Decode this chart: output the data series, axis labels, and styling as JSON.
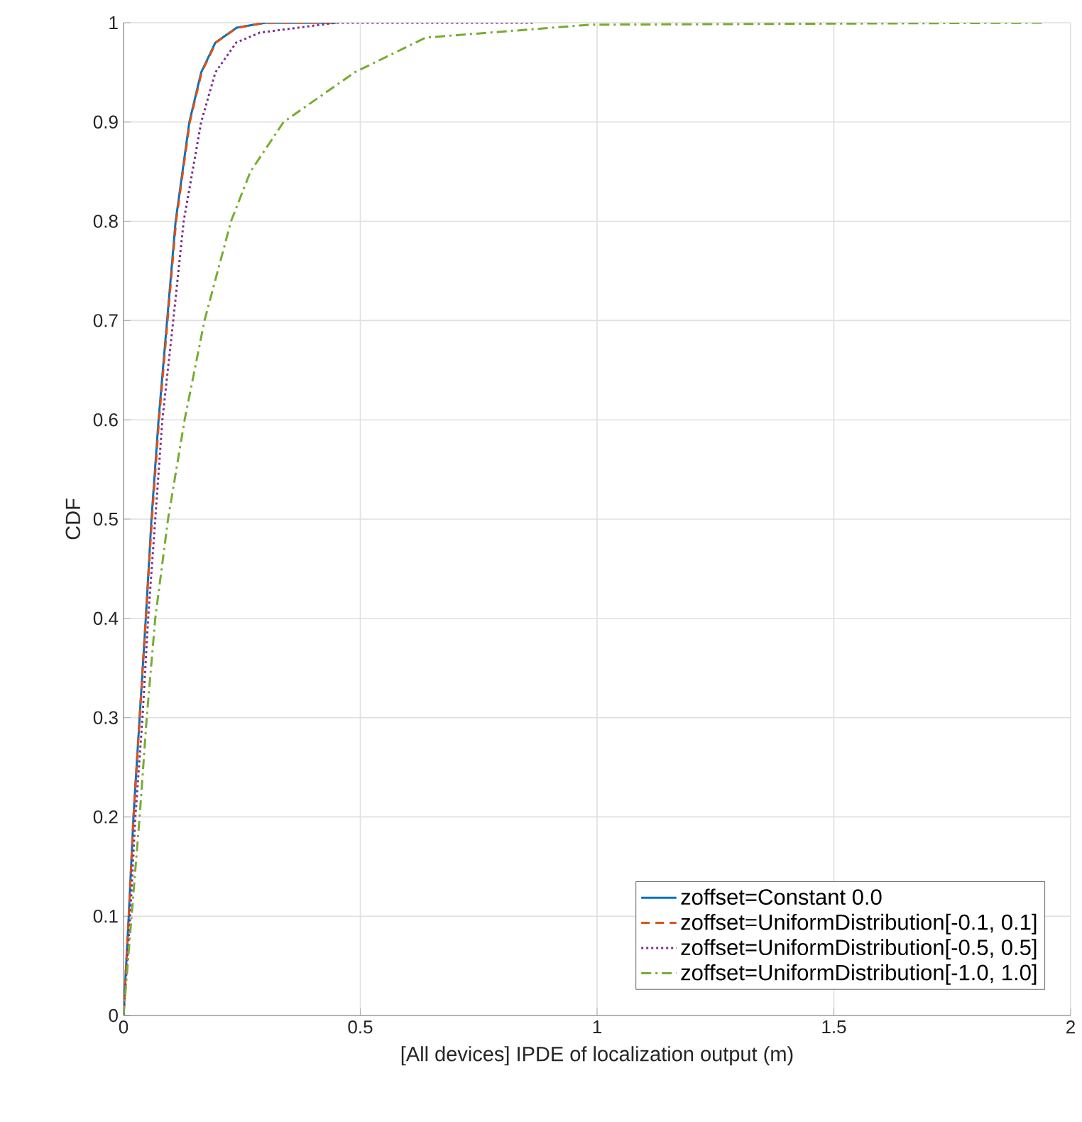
{
  "chart_data": {
    "type": "line",
    "xlabel": "[All devices] IPDE of localization output (m)",
    "ylabel": "CDF",
    "xlim": [
      0,
      2
    ],
    "ylim": [
      0,
      1
    ],
    "xticks": [
      0,
      0.5,
      1,
      1.5,
      2
    ],
    "yticks": [
      0,
      0.1,
      0.2,
      0.3,
      0.4,
      0.5,
      0.6,
      0.7,
      0.8,
      0.9,
      1
    ],
    "grid": true,
    "legend": "bottom right",
    "marker": "none",
    "series": [
      {
        "name": "zoffset=Constant 0.0",
        "color": "#0072bd",
        "line_style": "solid",
        "x": [
          0,
          0.011,
          0.021,
          0.034,
          0.047,
          0.059,
          0.074,
          0.092,
          0.11,
          0.139,
          0.164,
          0.194,
          0.239,
          0.3,
          0.449
        ],
        "values": [
          0,
          0.1,
          0.2,
          0.3,
          0.4,
          0.5,
          0.6,
          0.7,
          0.8,
          0.9,
          0.95,
          0.98,
          0.995,
          1,
          1
        ]
      },
      {
        "name": "zoffset=UniformDistribution[-0.1, 0.1]",
        "color": "#d95319",
        "line_style": "dashed",
        "x": [
          0,
          0.011,
          0.021,
          0.034,
          0.047,
          0.06,
          0.075,
          0.093,
          0.111,
          0.14,
          0.165,
          0.195,
          0.24,
          0.3,
          0.452
        ],
        "values": [
          0,
          0.1,
          0.2,
          0.3,
          0.4,
          0.5,
          0.6,
          0.7,
          0.8,
          0.9,
          0.95,
          0.98,
          0.995,
          1,
          1
        ]
      },
      {
        "name": "zoffset=UniformDistribution[-0.5, 0.5]",
        "color": "#7e2f8e",
        "line_style": "dotted",
        "x": [
          0,
          0.014,
          0.025,
          0.04,
          0.052,
          0.067,
          0.082,
          0.105,
          0.127,
          0.164,
          0.194,
          0.238,
          0.288,
          0.45,
          0.867
        ],
        "values": [
          0,
          0.1,
          0.2,
          0.3,
          0.4,
          0.5,
          0.6,
          0.7,
          0.8,
          0.9,
          0.95,
          0.98,
          0.99,
          1,
          1
        ]
      },
      {
        "name": "zoffset=UniformDistribution[-1.0, 1.0]",
        "color": "#77ac30",
        "line_style": "dashdot",
        "x": [
          0,
          0.017,
          0.034,
          0.049,
          0.067,
          0.094,
          0.129,
          0.171,
          0.227,
          0.268,
          0.338,
          0.488,
          0.638,
          0.987,
          1.945
        ],
        "values": [
          0,
          0.1,
          0.2,
          0.3,
          0.4,
          0.5,
          0.6,
          0.7,
          0.8,
          0.85,
          0.9,
          0.95,
          0.985,
          0.998,
          1
        ]
      }
    ]
  }
}
